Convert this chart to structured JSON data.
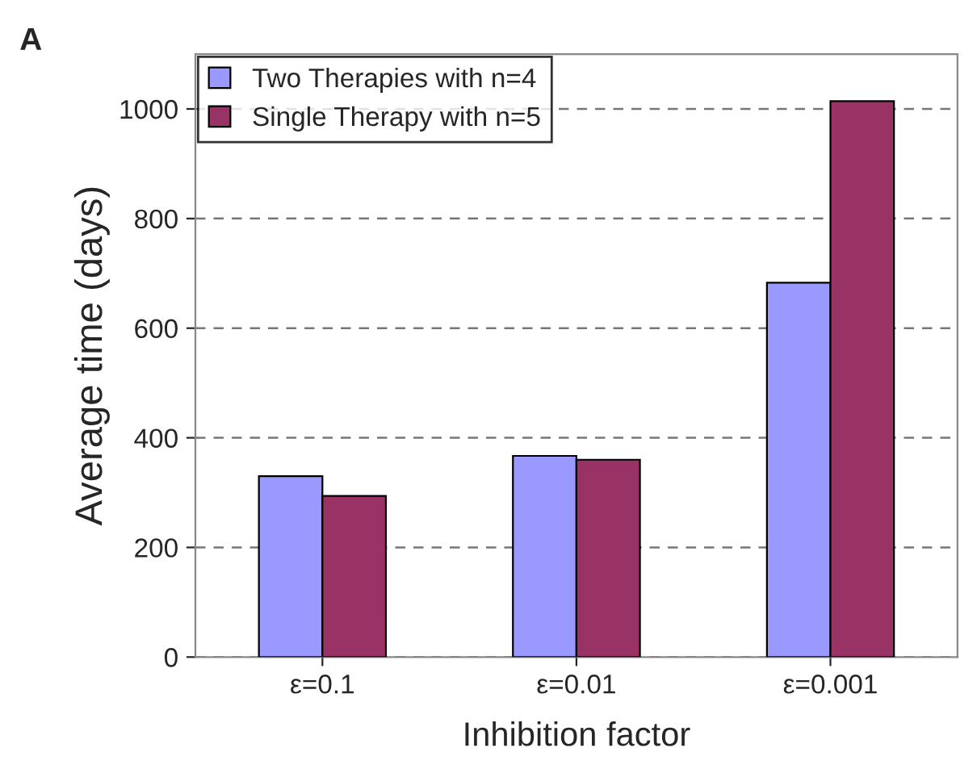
{
  "chart_data": {
    "type": "bar",
    "title": "A",
    "xlabel": "Inhibition factor",
    "ylabel": "Average time (days)",
    "categories": [
      "ε=0.1",
      "ε=0.01",
      "ε=0.001"
    ],
    "series": [
      {
        "name": "Two Therapies with n=4",
        "color": "#9999ff",
        "values": [
          330,
          367,
          683
        ]
      },
      {
        "name": "Single Therapy with n=5",
        "color": "#993366",
        "values": [
          294,
          360,
          1014
        ]
      }
    ],
    "ylim": [
      0,
      1100
    ],
    "yticks": [
      0,
      200,
      400,
      600,
      800,
      1000
    ],
    "grid": "y",
    "legend": "top left"
  }
}
